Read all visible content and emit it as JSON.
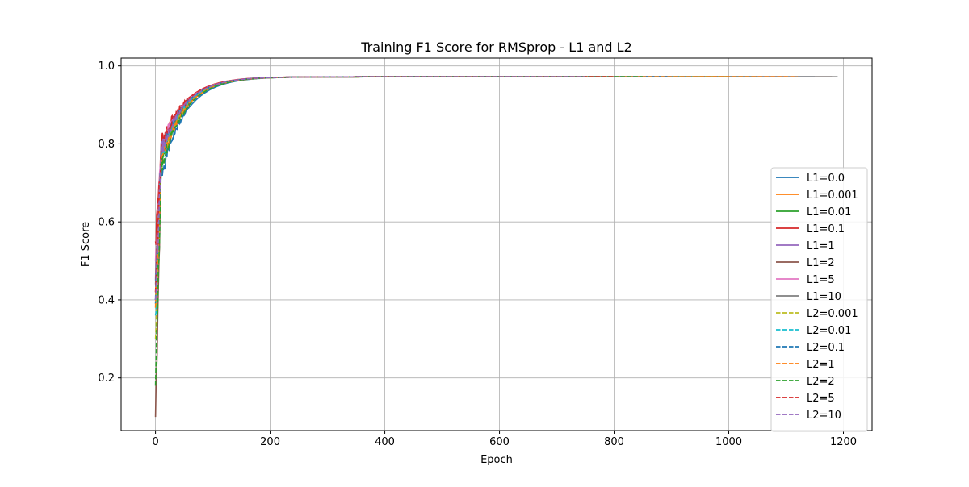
{
  "chart_data": {
    "type": "line",
    "title": "Training F1 Score for RMSprop - L1 and L2",
    "xlabel": "Epoch",
    "ylabel": "F1 Score",
    "xlim": [
      -60,
      1250
    ],
    "ylim": [
      0.065,
      1.02
    ],
    "xticks": [
      0,
      200,
      400,
      600,
      800,
      1000,
      1200
    ],
    "yticks": [
      0.2,
      0.4,
      0.6,
      0.8,
      1.0
    ],
    "xtick_labels": [
      "0",
      "200",
      "400",
      "600",
      "800",
      "1000",
      "1200"
    ],
    "ytick_labels": [
      "0.2",
      "0.4",
      "0.6",
      "0.8",
      "1.0"
    ],
    "grid": true,
    "legend_position": "lower-right",
    "series": [
      {
        "name": "L1=0.0",
        "color": "#1f77b4",
        "dash": "solid",
        "start": 0.39,
        "mid": 0.72,
        "final": 0.972,
        "end_epoch": 1150
      },
      {
        "name": "L1=0.001",
        "color": "#ff7f0e",
        "dash": "solid",
        "start": 0.42,
        "mid": 0.75,
        "final": 0.972,
        "end_epoch": 1100
      },
      {
        "name": "L1=0.01",
        "color": "#2ca02c",
        "dash": "solid",
        "start": 0.4,
        "mid": 0.77,
        "final": 0.972,
        "end_epoch": 1050
      },
      {
        "name": "L1=0.1",
        "color": "#d62728",
        "dash": "solid",
        "start": 0.55,
        "mid": 0.8,
        "final": 0.972,
        "end_epoch": 1000
      },
      {
        "name": "L1=1",
        "color": "#9467bd",
        "dash": "solid",
        "start": 0.45,
        "mid": 0.78,
        "final": 0.972,
        "end_epoch": 950
      },
      {
        "name": "L1=2",
        "color": "#8c564b",
        "dash": "solid",
        "start": 0.1,
        "mid": 0.76,
        "final": 0.972,
        "end_epoch": 1180
      },
      {
        "name": "L1=5",
        "color": "#e377c2",
        "dash": "solid",
        "start": 0.5,
        "mid": 0.79,
        "final": 0.972,
        "end_epoch": 900
      },
      {
        "name": "L1=10",
        "color": "#7f7f7f",
        "dash": "solid",
        "start": 0.44,
        "mid": 0.78,
        "final": 0.972,
        "end_epoch": 1190
      },
      {
        "name": "L2=0.001",
        "color": "#bcbd22",
        "dash": "dashed",
        "start": 0.3,
        "mid": 0.76,
        "final": 0.972,
        "end_epoch": 1000
      },
      {
        "name": "L2=0.01",
        "color": "#17becf",
        "dash": "dashed",
        "start": 0.36,
        "mid": 0.77,
        "final": 0.972,
        "end_epoch": 950
      },
      {
        "name": "L2=0.1",
        "color": "#1f77b4",
        "dash": "dashed",
        "start": 0.4,
        "mid": 0.78,
        "final": 0.972,
        "end_epoch": 900
      },
      {
        "name": "L2=1",
        "color": "#ff7f0e",
        "dash": "dashed",
        "start": 0.38,
        "mid": 0.75,
        "final": 0.972,
        "end_epoch": 1120
      },
      {
        "name": "L2=2",
        "color": "#2ca02c",
        "dash": "dashed",
        "start": 0.18,
        "mid": 0.74,
        "final": 0.972,
        "end_epoch": 850
      },
      {
        "name": "L2=5",
        "color": "#d62728",
        "dash": "dashed",
        "start": 0.42,
        "mid": 0.79,
        "final": 0.972,
        "end_epoch": 800
      },
      {
        "name": "L2=10",
        "color": "#9467bd",
        "dash": "dashed",
        "start": 0.4,
        "mid": 0.78,
        "final": 0.972,
        "end_epoch": 750
      }
    ]
  }
}
